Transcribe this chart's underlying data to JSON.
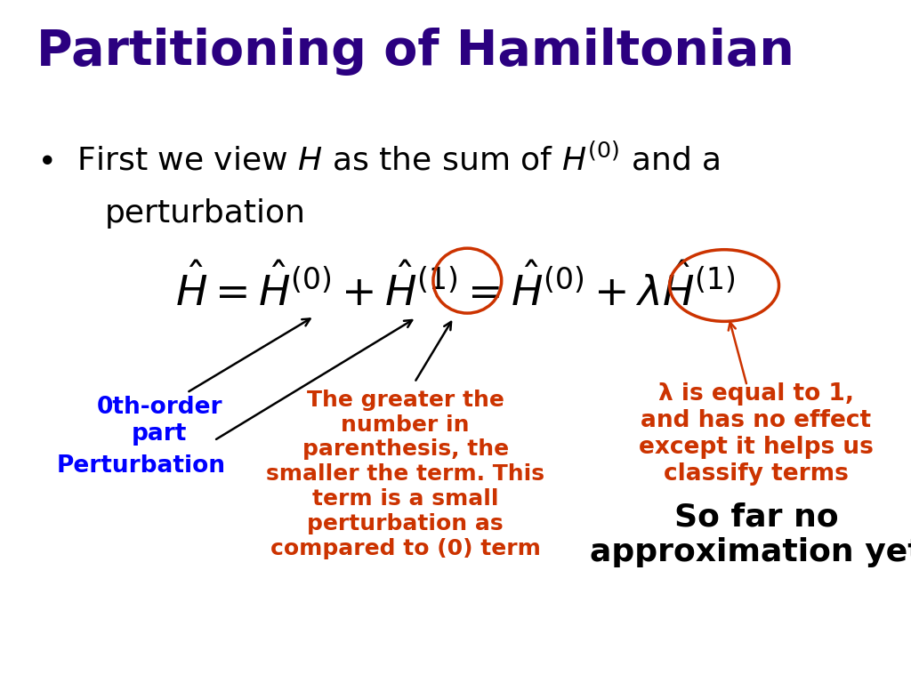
{
  "title": "Partitioning of Hamiltonian",
  "title_color": "#2B0080",
  "title_fontsize": 40,
  "title_fontweight": "bold",
  "bg_color": "#ffffff",
  "bullet_fontsize": 26,
  "eq_fontsize": 34,
  "orange_color": "#CC3300",
  "blue_color": "#0000FF",
  "annotation_fontsize": 19,
  "label_0th_order": "0th-order\npart",
  "label_perturbation": "Perturbation",
  "label_greater": "The greater the\nnumber in\nparenthesis, the\nsmaller the term. This\nterm is a small\nperturbation as\ncompared to (0) term",
  "label_lambda": "λ is equal to 1,\nand has no effect\nexcept it helps us\nclassify terms",
  "label_sofar": "So far no\napproximation yet",
  "sofar_fontsize": 26
}
